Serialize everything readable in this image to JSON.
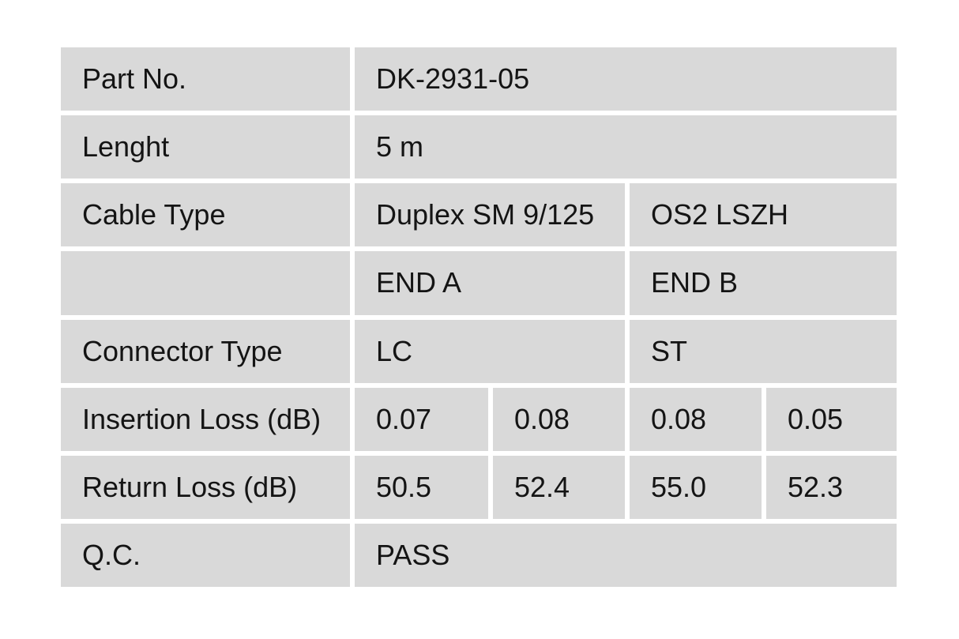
{
  "colors": {
    "background": "#ffffff",
    "cell_bg": "#d9d9d9",
    "text": "#141414"
  },
  "table": {
    "rows": {
      "part_no": {
        "label": "Part No.",
        "value": "DK-2931-05"
      },
      "length": {
        "label": "Lenght",
        "value": "5 m"
      },
      "cable_type": {
        "label": "Cable Type",
        "end_a": "Duplex SM 9/125",
        "end_b": "OS2 LSZH"
      },
      "ends": {
        "label": "",
        "end_a": "END A",
        "end_b": "END B"
      },
      "connector_type": {
        "label": "Connector Type",
        "end_a": "LC",
        "end_b": "ST"
      },
      "insertion_loss": {
        "label": "Insertion Loss (dB)",
        "values": [
          "0.07",
          "0.08",
          "0.08",
          "0.05"
        ]
      },
      "return_loss": {
        "label": "Return Loss (dB)",
        "values": [
          "50.5",
          "52.4",
          "55.0",
          "52.3"
        ]
      },
      "qc": {
        "label": "Q.C.",
        "value": "PASS"
      }
    }
  }
}
